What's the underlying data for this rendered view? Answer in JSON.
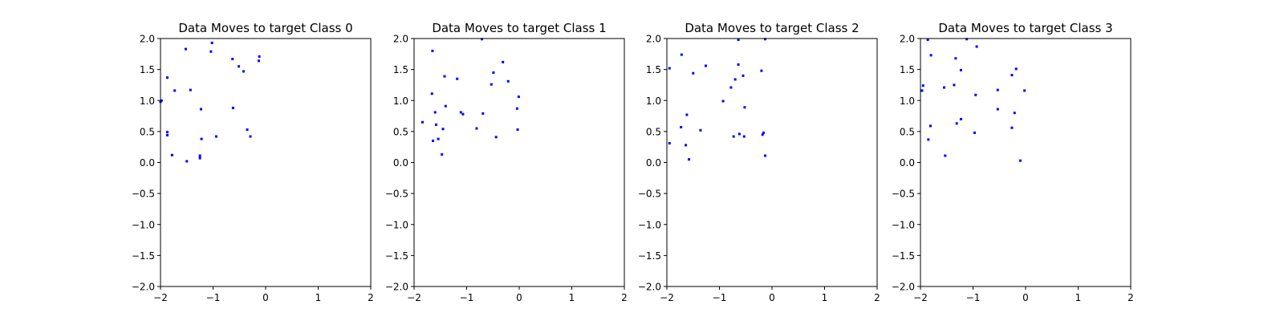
{
  "figure": {
    "background": "#ffffff",
    "point_color": "#0000ff"
  },
  "chart_data": [
    {
      "type": "scatter",
      "title": "Data Moves to target Class 0",
      "xlim": [
        -2,
        2
      ],
      "ylim": [
        -2,
        2
      ],
      "xticks": [
        -2,
        -1,
        0,
        1,
        2
      ],
      "yticks": [
        -2.0,
        -1.5,
        -1.0,
        -0.5,
        0.0,
        0.5,
        1.0,
        1.5,
        2.0
      ],
      "xlabel": "",
      "ylabel": "",
      "grid": false,
      "series": [
        {
          "color": "#0000ff",
          "marker": "square",
          "points": [
            [
              -1.52,
              1.83
            ],
            [
              -1.02,
              1.93
            ],
            [
              -1.04,
              1.79
            ],
            [
              -0.63,
              1.67
            ],
            [
              -0.12,
              1.71
            ],
            [
              -0.13,
              1.64
            ],
            [
              -0.51,
              1.55
            ],
            [
              -0.42,
              1.47
            ],
            [
              -1.87,
              1.37
            ],
            [
              -1.73,
              1.16
            ],
            [
              -1.43,
              1.17
            ],
            [
              -1.98,
              1.0
            ],
            [
              -2.0,
              0.98
            ],
            [
              -1.23,
              0.86
            ],
            [
              -0.62,
              0.88
            ],
            [
              -1.87,
              0.49
            ],
            [
              -1.87,
              0.44
            ],
            [
              -0.94,
              0.42
            ],
            [
              -0.35,
              0.53
            ],
            [
              -0.29,
              0.42
            ],
            [
              -1.22,
              0.38
            ],
            [
              -1.78,
              0.12
            ],
            [
              -1.25,
              0.11
            ],
            [
              -1.25,
              0.07
            ],
            [
              -1.5,
              0.02
            ]
          ]
        }
      ]
    },
    {
      "type": "scatter",
      "title": "Data Moves to target Class 1",
      "xlim": [
        -2,
        2
      ],
      "ylim": [
        -2,
        2
      ],
      "xticks": [
        -2,
        -1,
        0,
        1,
        2
      ],
      "yticks": [
        -2.0,
        -1.5,
        -1.0,
        -0.5,
        0.0,
        0.5,
        1.0,
        1.5,
        2.0
      ],
      "xlabel": "",
      "ylabel": "",
      "grid": false,
      "series": [
        {
          "color": "#0000ff",
          "marker": "square",
          "points": [
            [
              -0.71,
              1.99
            ],
            [
              -1.65,
              1.8
            ],
            [
              -0.31,
              1.62
            ],
            [
              -0.49,
              1.45
            ],
            [
              -0.53,
              1.26
            ],
            [
              -1.42,
              1.39
            ],
            [
              -1.18,
              1.35
            ],
            [
              -0.21,
              1.31
            ],
            [
              -1.66,
              1.11
            ],
            [
              -0.01,
              1.06
            ],
            [
              -1.4,
              0.91
            ],
            [
              -0.04,
              0.87
            ],
            [
              -1.6,
              0.81
            ],
            [
              -1.11,
              0.81
            ],
            [
              -1.07,
              0.78
            ],
            [
              -0.69,
              0.79
            ],
            [
              -1.84,
              0.65
            ],
            [
              -1.58,
              0.61
            ],
            [
              -1.45,
              0.54
            ],
            [
              -0.81,
              0.55
            ],
            [
              -0.03,
              0.53
            ],
            [
              -0.44,
              0.41
            ],
            [
              -1.64,
              0.35
            ],
            [
              -1.54,
              0.38
            ],
            [
              -1.47,
              0.13
            ]
          ]
        }
      ]
    },
    {
      "type": "scatter",
      "title": "Data Moves to target Class 2",
      "xlim": [
        -2,
        2
      ],
      "ylim": [
        -2,
        2
      ],
      "xticks": [
        -2,
        -1,
        0,
        1,
        2
      ],
      "yticks": [
        -2.0,
        -1.5,
        -1.0,
        -0.5,
        0.0,
        0.5,
        1.0,
        1.5,
        2.0
      ],
      "xlabel": "",
      "ylabel": "",
      "grid": false,
      "series": [
        {
          "color": "#0000ff",
          "marker": "square",
          "points": [
            [
              -0.64,
              1.98
            ],
            [
              -0.13,
              1.99
            ],
            [
              -1.72,
              1.74
            ],
            [
              -1.95,
              1.52
            ],
            [
              -1.26,
              1.56
            ],
            [
              -0.64,
              1.58
            ],
            [
              -1.5,
              1.44
            ],
            [
              -0.2,
              1.48
            ],
            [
              -0.7,
              1.34
            ],
            [
              -0.55,
              1.4
            ],
            [
              -0.78,
              1.21
            ],
            [
              -0.93,
              0.99
            ],
            [
              -0.52,
              0.89
            ],
            [
              -1.62,
              0.77
            ],
            [
              -1.73,
              0.57
            ],
            [
              -1.36,
              0.52
            ],
            [
              -0.73,
              0.42
            ],
            [
              -0.62,
              0.46
            ],
            [
              -0.53,
              0.42
            ],
            [
              -0.18,
              0.45
            ],
            [
              -0.16,
              0.48
            ],
            [
              -1.95,
              0.31
            ],
            [
              -1.64,
              0.28
            ],
            [
              -1.58,
              0.05
            ],
            [
              -0.13,
              0.11
            ]
          ]
        }
      ]
    },
    {
      "type": "scatter",
      "title": "Data Moves to target Class 3",
      "xlim": [
        -2,
        2
      ],
      "ylim": [
        -2,
        2
      ],
      "xticks": [
        -2,
        -1,
        0,
        1,
        2
      ],
      "yticks": [
        -2.0,
        -1.5,
        -1.0,
        -0.5,
        0.0,
        0.5,
        1.0,
        1.5,
        2.0
      ],
      "xlabel": "",
      "ylabel": "",
      "grid": false,
      "series": [
        {
          "color": "#0000ff",
          "marker": "square",
          "points": [
            [
              -1.86,
              1.98
            ],
            [
              -1.12,
              1.99
            ],
            [
              -0.93,
              1.87
            ],
            [
              -1.8,
              1.73
            ],
            [
              -1.33,
              1.68
            ],
            [
              -1.23,
              1.49
            ],
            [
              -0.18,
              1.51
            ],
            [
              -0.26,
              1.41
            ],
            [
              -1.95,
              1.24
            ],
            [
              -1.97,
              1.16
            ],
            [
              -1.55,
              1.21
            ],
            [
              -1.36,
              1.25
            ],
            [
              -0.53,
              1.17
            ],
            [
              -0.02,
              1.16
            ],
            [
              -0.95,
              1.09
            ],
            [
              -0.53,
              0.86
            ],
            [
              -0.21,
              0.8
            ],
            [
              -1.23,
              0.7
            ],
            [
              -1.31,
              0.63
            ],
            [
              -1.81,
              0.59
            ],
            [
              -0.26,
              0.56
            ],
            [
              -0.97,
              0.48
            ],
            [
              -1.85,
              0.37
            ],
            [
              -1.53,
              0.11
            ],
            [
              -0.1,
              0.03
            ]
          ]
        }
      ]
    }
  ]
}
